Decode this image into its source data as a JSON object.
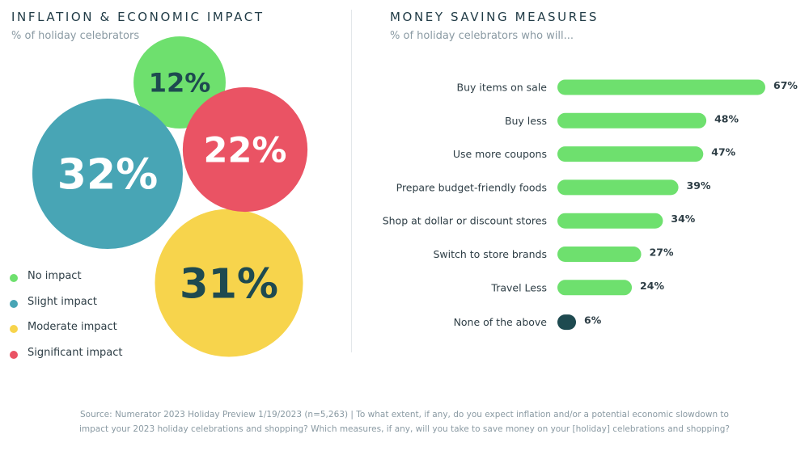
{
  "left": {
    "title": "INFLATION & ECONOMIC IMPACT",
    "subtitle": "% of holiday celebrators"
  },
  "right": {
    "title": "MONEY SAVING MEASURES",
    "subtitle": "% of holiday celebrators who will..."
  },
  "colors": {
    "green": "#6ee06e",
    "teal": "#48a5b5",
    "yellow": "#f7d44c",
    "red": "#ea5364",
    "dark": "#1e4a50",
    "text": "#2e3e46"
  },
  "chart_data": [
    {
      "type": "bubble",
      "title": "INFLATION & ECONOMIC IMPACT",
      "subtitle": "% of holiday celebrators",
      "series": [
        {
          "name": "No impact",
          "value": 12,
          "label": "12%",
          "color": "#6ee06e"
        },
        {
          "name": "Slight impact",
          "value": 32,
          "label": "32%",
          "color": "#48a5b5"
        },
        {
          "name": "Moderate impact",
          "value": 31,
          "label": "31%",
          "color": "#f7d44c"
        },
        {
          "name": "Significant impact",
          "value": 22,
          "label": "22%",
          "color": "#ea5364"
        }
      ],
      "legend": [
        "No impact",
        "Slight impact",
        "Moderate impact",
        "Significant impact"
      ],
      "legend_position": "bottom-left"
    },
    {
      "type": "bar",
      "orientation": "horizontal",
      "title": "MONEY SAVING MEASURES",
      "subtitle": "% of holiday celebrators who will...",
      "categories": [
        "Buy items on sale",
        "Buy less",
        "Use more coupons",
        "Prepare budget-friendly foods",
        "Shop at dollar or discount stores",
        "Switch to store brands",
        "Travel Less",
        "None of the above"
      ],
      "values": [
        67,
        48,
        47,
        39,
        34,
        27,
        24,
        6
      ],
      "labels": [
        "67%",
        "48%",
        "47%",
        "39%",
        "34%",
        "27%",
        "24%",
        "6%"
      ],
      "colors": [
        "#6ee06e",
        "#6ee06e",
        "#6ee06e",
        "#6ee06e",
        "#6ee06e",
        "#6ee06e",
        "#6ee06e",
        "#1e4a50"
      ],
      "xlim": [
        0,
        67
      ]
    }
  ],
  "footer": {
    "line1": "Source: Numerator 2023 Holiday Preview 1/19/2023 (n=5,263) | To what extent, if any, do you expect inflation and/or a potential economic slowdown to",
    "line2": "impact your 2023 holiday celebrations and shopping? Which measures, if any, will you take to save money on your [holiday] celebrations and shopping?"
  }
}
